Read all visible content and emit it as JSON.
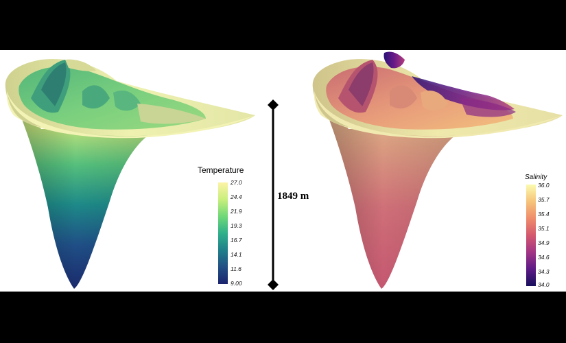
{
  "left_colorbar": {
    "title": "Temperature",
    "ticks": [
      "27.0",
      "24.4",
      "21.9",
      "19.3",
      "16.7",
      "14.1",
      "11.6",
      "9.00"
    ],
    "min": 9.0,
    "max": 27.0,
    "colors": [
      "#fdf3a6",
      "#c9ef7d",
      "#6fd878",
      "#2fb08a",
      "#1f7f8a",
      "#214f84",
      "#1b246e"
    ]
  },
  "right_colorbar": {
    "title": "Salinity",
    "ticks": [
      "36.0",
      "35.7",
      "35.4",
      "35.1",
      "34.9",
      "34.6",
      "34.3",
      "34.0"
    ],
    "min": 34.0,
    "max": 36.0,
    "colors": [
      "#fbfbb0",
      "#f6c47a",
      "#ef8d6c",
      "#d4586e",
      "#a23585",
      "#5d1a86",
      "#170f5c"
    ]
  },
  "scale_bar": {
    "label": "1849 m"
  }
}
